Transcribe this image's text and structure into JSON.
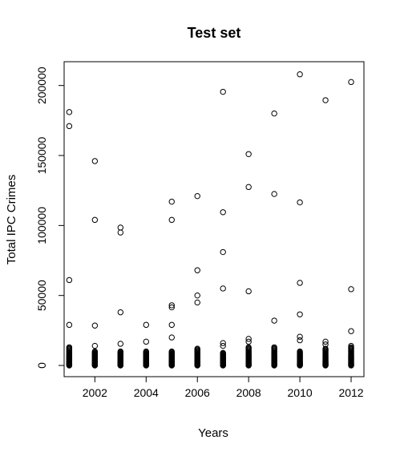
{
  "chart_data": {
    "type": "scatter",
    "title": "Test set",
    "xlabel": "Years",
    "ylabel": "Total IPC Crimes",
    "xlim": [
      2000.8,
      2012.5
    ],
    "ylim": [
      -8000,
      217000
    ],
    "xticks": [
      2002,
      2004,
      2006,
      2008,
      2010,
      2012
    ],
    "yticks": [
      0,
      50000,
      100000,
      150000,
      200000
    ],
    "xtick_labels": [
      "2002",
      "2004",
      "2006",
      "2008",
      "2010",
      "2012"
    ],
    "ytick_labels": [
      "0",
      "50000",
      "100000",
      "150000",
      "200000"
    ],
    "grid": false,
    "marker": "open-circle",
    "marker_color": "#000000",
    "series": [
      {
        "points": [
          [
            2001,
            181000
          ],
          [
            2001,
            171000
          ],
          [
            2001,
            61000
          ],
          [
            2001,
            29000
          ],
          [
            2002,
            146000
          ],
          [
            2002,
            104000
          ],
          [
            2002,
            28500
          ],
          [
            2002,
            14000
          ],
          [
            2003,
            98500
          ],
          [
            2003,
            95000
          ],
          [
            2003,
            38000
          ],
          [
            2003,
            15500
          ],
          [
            2004,
            29000
          ],
          [
            2004,
            17000
          ],
          [
            2005,
            117000
          ],
          [
            2005,
            104000
          ],
          [
            2005,
            43000
          ],
          [
            2005,
            41500
          ],
          [
            2005,
            29000
          ],
          [
            2005,
            20000
          ],
          [
            2006,
            121000
          ],
          [
            2006,
            68000
          ],
          [
            2006,
            50000
          ],
          [
            2006,
            45000
          ],
          [
            2007,
            195500
          ],
          [
            2007,
            109500
          ],
          [
            2007,
            81000
          ],
          [
            2007,
            55000
          ],
          [
            2007,
            16000
          ],
          [
            2007,
            14000
          ],
          [
            2008,
            151000
          ],
          [
            2008,
            127500
          ],
          [
            2008,
            53000
          ],
          [
            2008,
            19000
          ],
          [
            2008,
            17000
          ],
          [
            2009,
            180000
          ],
          [
            2009,
            122500
          ],
          [
            2009,
            32000
          ],
          [
            2010,
            208000
          ],
          [
            2010,
            116500
          ],
          [
            2010,
            59000
          ],
          [
            2010,
            36500
          ],
          [
            2010,
            20500
          ],
          [
            2010,
            18000
          ],
          [
            2011,
            189500
          ],
          [
            2011,
            17000
          ],
          [
            2011,
            15000
          ],
          [
            2012,
            202500
          ],
          [
            2012,
            54500
          ],
          [
            2012,
            24500
          ],
          [
            2012,
            14000
          ]
        ],
        "dense_range": {
          "x": [
            2001,
            2002,
            2003,
            2004,
            2005,
            2006,
            2007,
            2008,
            2009,
            2010,
            2011,
            2012
          ],
          "y_min": 0,
          "y_max": [
            13000,
            10000,
            10000,
            10000,
            10000,
            12000,
            9000,
            13000,
            13000,
            10000,
            12000,
            13000
          ]
        }
      }
    ]
  }
}
